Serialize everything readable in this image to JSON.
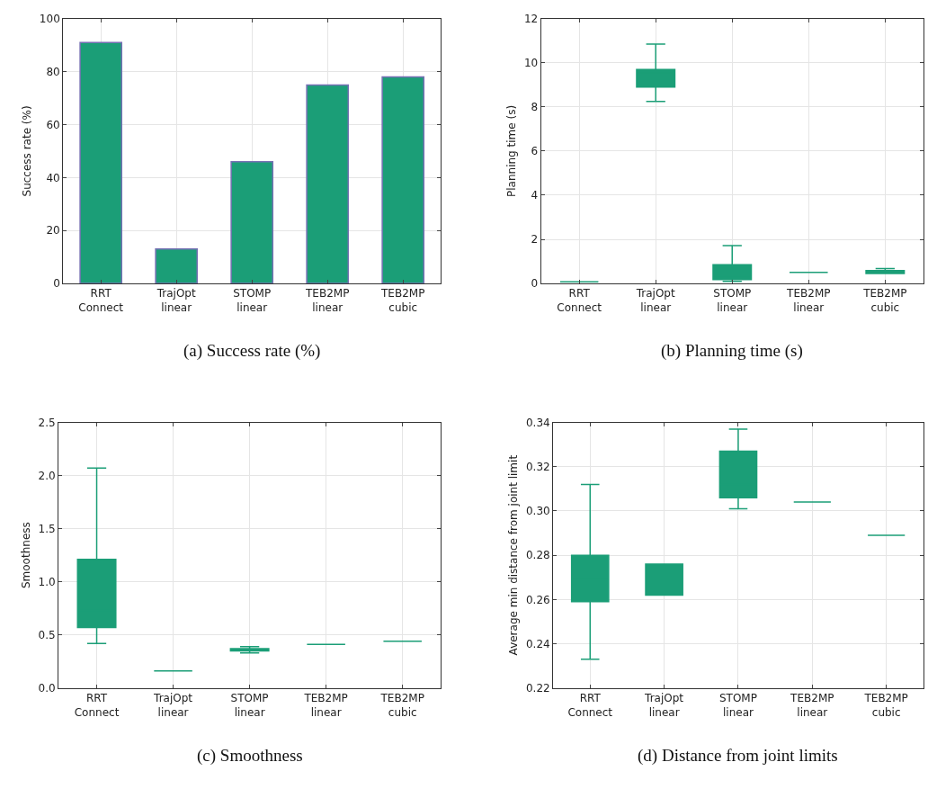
{
  "chart_data": [
    {
      "type": "bar",
      "title": "(a) Success rate (%)",
      "ylabel": "Success rate (%)",
      "categories": [
        "RRT Connect",
        "TrajOpt linear",
        "STOMP linear",
        "TEB2MP linear",
        "TEB2MP cubic"
      ],
      "values": [
        91,
        13,
        46,
        75,
        78
      ],
      "color": "#1b9e77",
      "ylim": [
        0,
        100
      ],
      "yticks": [
        0,
        20,
        40,
        60,
        80,
        100
      ],
      "grid": true
    },
    {
      "type": "box",
      "title": "(b) Planning time (s)",
      "ylabel": "Planning time (s)",
      "categories": [
        "RRT Connect",
        "TrajOpt linear",
        "STOMP linear",
        "TEB2MP linear",
        "TEB2MP cubic"
      ],
      "ylim": [
        0,
        12
      ],
      "yticks": [
        0,
        2,
        4,
        6,
        8,
        10,
        12
      ],
      "grid": true,
      "series": [
        {
          "color": "#1b9e77",
          "boxes": [
            {
              "low": 0.08,
              "q1": 0.08,
              "median": 0.08,
              "q3": 0.08,
              "high": 0.08
            },
            {
              "low": 8.25,
              "q1": 8.9,
              "median": 9.55,
              "q3": 9.7,
              "high": 10.85
            },
            {
              "low": 0.1,
              "q1": 0.18,
              "median": 0.28,
              "q3": 0.85,
              "high": 1.72
            },
            {
              "low": 0.5,
              "q1": 0.5,
              "median": 0.5,
              "q3": 0.5,
              "high": 0.5
            },
            {
              "low": 0.45,
              "q1": 0.45,
              "median": 0.52,
              "q3": 0.58,
              "high": 0.68
            }
          ]
        }
      ]
    },
    {
      "type": "box",
      "title": "(c) Smoothness",
      "ylabel": "Smoothness",
      "categories": [
        "RRT Connect",
        "TrajOpt linear",
        "STOMP linear",
        "TEB2MP linear",
        "TEB2MP cubic"
      ],
      "ylim": [
        0,
        2.5
      ],
      "yticks": [
        {
          "value": 0,
          "label": "0.0"
        },
        0.5,
        {
          "value": 1,
          "label": "1.0"
        },
        1.5,
        {
          "value": 2,
          "label": "2.0"
        },
        2.5
      ],
      "grid": true,
      "series": [
        {
          "color": "#1b9e77",
          "boxes": [
            {
              "low": 0.42,
              "q1": 0.57,
              "median": 0.73,
              "q3": 1.21,
              "high": 2.07
            },
            {
              "low": 0.16,
              "q1": 0.16,
              "median": 0.16,
              "q3": 0.16,
              "high": 0.16
            },
            {
              "low": 0.33,
              "q1": 0.35,
              "median": 0.36,
              "q3": 0.37,
              "high": 0.39
            },
            {
              "low": 0.41,
              "q1": 0.41,
              "median": 0.41,
              "q3": 0.41,
              "high": 0.41
            },
            {
              "low": 0.44,
              "q1": 0.44,
              "median": 0.44,
              "q3": 0.44,
              "high": 0.44
            }
          ]
        }
      ]
    },
    {
      "type": "box",
      "title": "(d) Distance from joint limits",
      "ylabel": "Average min distance from joint limit",
      "categories": [
        "RRT Connect",
        "TrajOpt linear",
        "STOMP linear",
        "TEB2MP linear",
        "TEB2MP cubic"
      ],
      "ylim": [
        0.22,
        0.34
      ],
      "yticks": [
        0.22,
        0.24,
        0.26,
        0.28,
        {
          "value": 0.3,
          "label": "0.30"
        },
        0.32,
        0.34
      ],
      "grid": true,
      "series": [
        {
          "color": "#1b9e77",
          "boxes": [
            {
              "low": 0.233,
              "q1": 0.259,
              "median": 0.269,
              "q3": 0.28,
              "high": 0.312
            },
            {
              "low": 0.262,
              "q1": 0.262,
              "median": 0.276,
              "q3": 0.276,
              "high": 0.276
            },
            {
              "low": 0.301,
              "q1": 0.306,
              "median": 0.312,
              "q3": 0.327,
              "high": 0.337
            },
            {
              "low": 0.304,
              "q1": 0.304,
              "median": 0.304,
              "q3": 0.304,
              "high": 0.304
            },
            {
              "low": 0.289,
              "q1": 0.289,
              "median": 0.289,
              "q3": 0.289,
              "high": 0.289
            }
          ]
        }
      ]
    }
  ]
}
